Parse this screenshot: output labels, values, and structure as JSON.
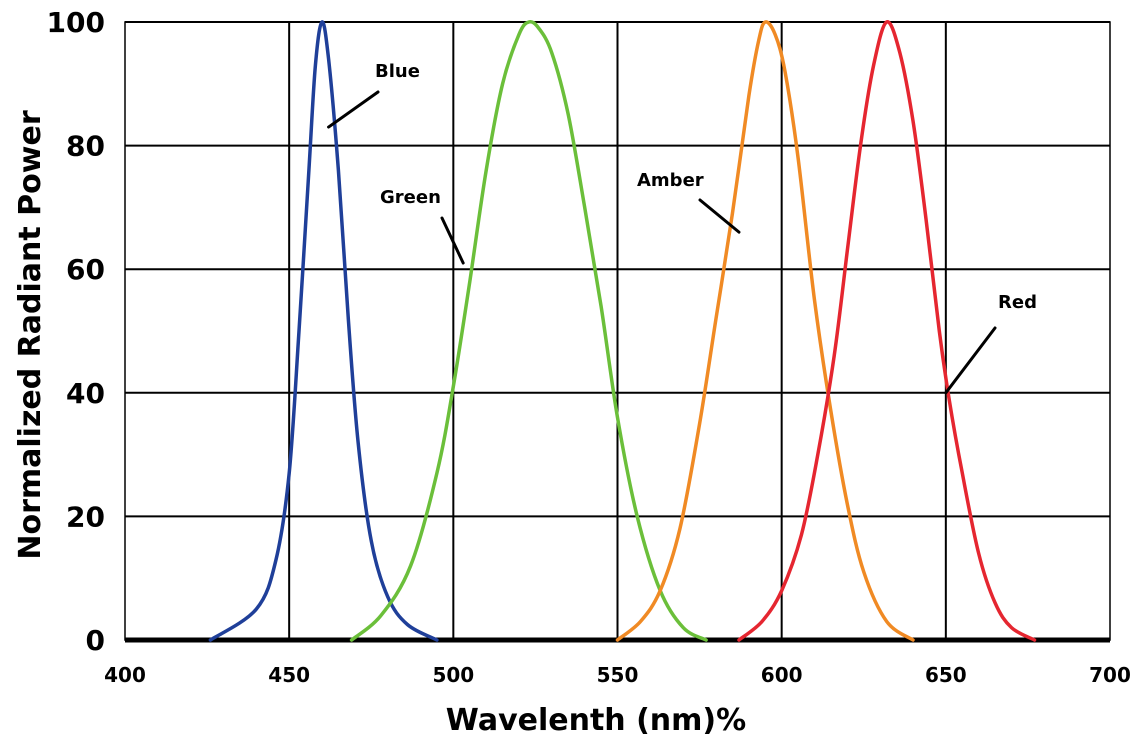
{
  "chart_data": {
    "type": "line",
    "xlabel": "Wavelenth (nm)%",
    "ylabel": "Normalized Radiant Power",
    "xlim": [
      400,
      700
    ],
    "ylim": [
      0,
      100
    ],
    "xticks": [
      400,
      450,
      500,
      550,
      600,
      650,
      700
    ],
    "yticks": [
      0,
      20,
      40,
      60,
      80,
      100
    ],
    "grid": true,
    "series": [
      {
        "name": "Blue",
        "color": "#1f3f99",
        "x": [
          426,
          440,
          446,
          450,
          453,
          456,
          458,
          460,
          462,
          465,
          468,
          471,
          475,
          480,
          486,
          495
        ],
        "y": [
          0,
          5,
          13,
          27,
          50,
          76,
          93,
          100,
          94,
          76,
          52,
          32,
          16,
          7,
          2.5,
          0
        ]
      },
      {
        "name": "Green",
        "color": "#6bbf3a",
        "x": [
          469,
          478,
          487,
          495,
          500,
          505,
          510,
          515,
          520,
          523,
          526,
          530,
          535,
          540,
          545,
          550,
          556,
          563,
          570,
          577
        ],
        "y": [
          0,
          4,
          12,
          27,
          41,
          58,
          76,
          90,
          98,
          100,
          99,
          95,
          85,
          70,
          54,
          36,
          20,
          8,
          2,
          0
        ]
      },
      {
        "name": "Amber",
        "color": "#f08a24",
        "x": [
          550,
          557,
          563,
          569,
          575,
          580,
          585,
          590,
          593,
          595,
          598,
          601,
          605,
          610,
          615,
          620,
          625,
          632,
          640
        ],
        "y": [
          0,
          3,
          8,
          18,
          35,
          52,
          69,
          88,
          97,
          100,
          98,
          92,
          78,
          55,
          37,
          22,
          11,
          3,
          0
        ]
      },
      {
        "name": "Red",
        "color": "#e52630",
        "x": [
          587,
          594,
          600,
          606,
          611,
          616,
          620,
          624,
          628,
          632,
          636,
          640,
          644,
          648,
          651,
          655,
          660,
          665,
          670,
          677
        ],
        "y": [
          0,
          3,
          8,
          17,
          30,
          46,
          63,
          80,
          93,
          100,
          95,
          84,
          68,
          50,
          39,
          27,
          14,
          6,
          2,
          0
        ]
      }
    ],
    "annotations": [
      {
        "text": "Blue",
        "target_x": 462,
        "target_y": 83
      },
      {
        "text": "Green",
        "target_x": 503,
        "target_y": 61
      },
      {
        "text": "Amber",
        "target_x": 587,
        "target_y": 66
      },
      {
        "text": "Red",
        "target_x": 650,
        "target_y": 40
      }
    ]
  }
}
